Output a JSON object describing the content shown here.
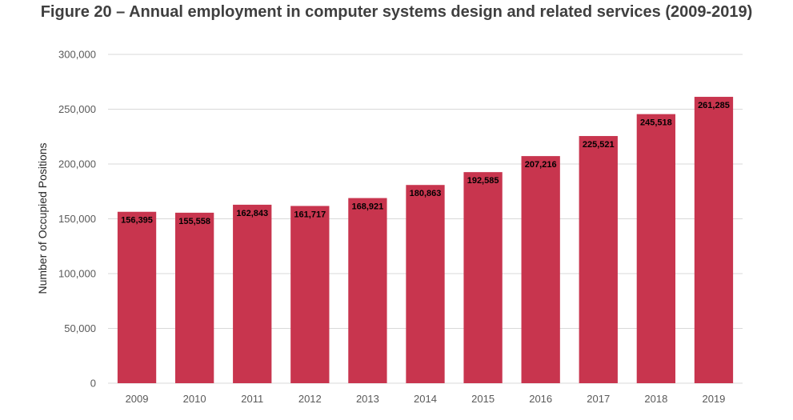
{
  "chart_data": {
    "type": "bar",
    "title": "Figure 20 – Annual employment in computer systems design and related services (2009-2019)",
    "xlabel": "",
    "ylabel": "Number of Occupied Positions",
    "categories": [
      "2009",
      "2010",
      "2011",
      "2012",
      "2013",
      "2014",
      "2015",
      "2016",
      "2017",
      "2018",
      "2019"
    ],
    "values": [
      156395,
      155558,
      162843,
      161717,
      168921,
      180863,
      192585,
      207216,
      225521,
      245518,
      261285
    ],
    "data_labels": [
      "156,395",
      "155,558",
      "162,843",
      "161,717",
      "168,921",
      "180,863",
      "192,585",
      "207,216",
      "225,521",
      "245,518",
      "261,285"
    ],
    "ylim": [
      0,
      300000
    ],
    "yticks": [
      0,
      50000,
      100000,
      150000,
      200000,
      250000,
      300000
    ],
    "ytick_labels": [
      "0",
      "50,000",
      "100,000",
      "150,000",
      "200,000",
      "250,000",
      "300,000"
    ],
    "grid": true,
    "legend": "none",
    "bar_color": "#c8354e",
    "grid_color": "#d9d9d9"
  }
}
